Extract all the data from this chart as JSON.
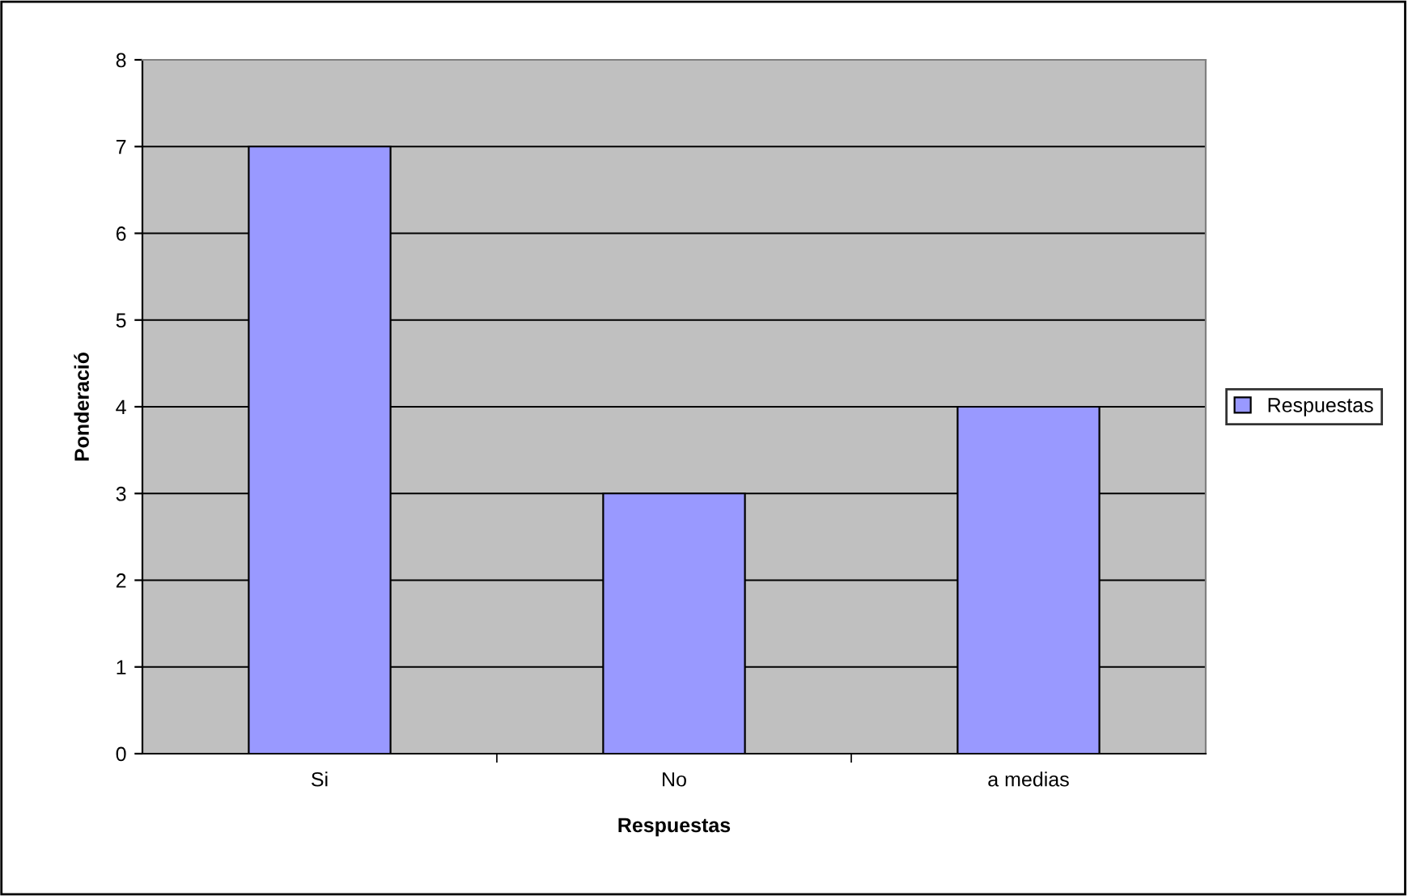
{
  "chart_data": {
    "type": "bar",
    "xlabel": "Respuestas",
    "ylabel": "Ponderació",
    "categories": [
      "Si",
      "No",
      "a medias"
    ],
    "series": [
      {
        "name": "Respuestas",
        "color": "#9999ff",
        "values": [
          7,
          3,
          4
        ]
      }
    ],
    "ylim": [
      0,
      8
    ],
    "yticks": [
      0,
      1,
      2,
      3,
      4,
      5,
      6,
      7,
      8
    ],
    "grid": "y",
    "legend": "right"
  }
}
